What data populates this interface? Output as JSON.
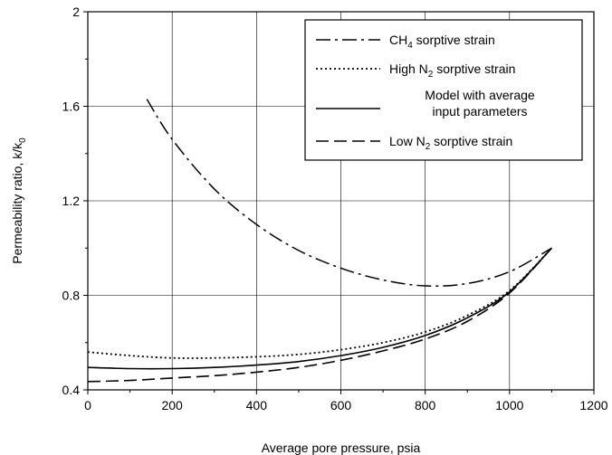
{
  "chart_data": {
    "type": "line",
    "xlabel": "Average pore pressure, psia",
    "ylabel": {
      "main": "Permeability ratio, k/k",
      "sub": "0"
    },
    "xlim": [
      0,
      1200
    ],
    "ylim": [
      0.4,
      2.0
    ],
    "xticks": [
      "0",
      "200",
      "400",
      "600",
      "800",
      "1000",
      "1200"
    ],
    "yticks": [
      "0.4",
      "0.8",
      "1.2",
      "1.6",
      "2"
    ],
    "grid": true,
    "legend_position": "top-right",
    "series": [
      {
        "name": "CH4 sorptive strain",
        "legend": {
          "pre": "CH",
          "sub": "4",
          "post": " sorptive strain"
        },
        "dash": "dashdot",
        "x": [
          140,
          200,
          300,
          400,
          500,
          600,
          700,
          800,
          900,
          1000,
          1100
        ],
        "y": [
          1.63,
          1.46,
          1.25,
          1.1,
          0.99,
          0.915,
          0.865,
          0.84,
          0.85,
          0.9,
          1.0
        ]
      },
      {
        "name": "High N2 sorptive strain",
        "legend": {
          "pre": "High N",
          "sub": "2",
          "post": " sorptive strain"
        },
        "dash": "dotted",
        "x": [
          0,
          100,
          200,
          300,
          400,
          500,
          600,
          700,
          800,
          900,
          1000,
          1100
        ],
        "y": [
          0.56,
          0.545,
          0.535,
          0.535,
          0.54,
          0.55,
          0.57,
          0.6,
          0.645,
          0.715,
          0.82,
          1.0
        ]
      },
      {
        "name": "Model with average input parameters",
        "legend": {
          "lines": [
            "Model with average",
            "input parameters"
          ]
        },
        "dash": "solid",
        "x": [
          0,
          100,
          200,
          300,
          400,
          500,
          600,
          700,
          800,
          900,
          1000,
          1100
        ],
        "y": [
          0.495,
          0.49,
          0.49,
          0.495,
          0.505,
          0.52,
          0.545,
          0.58,
          0.63,
          0.705,
          0.815,
          1.0
        ]
      },
      {
        "name": "Low N2 sorptive strain",
        "legend": {
          "pre": "Low N",
          "sub": "2",
          "post": " sorptive strain"
        },
        "dash": "dashed",
        "x": [
          0,
          100,
          200,
          300,
          400,
          500,
          600,
          700,
          800,
          900,
          1000,
          1100
        ],
        "y": [
          0.435,
          0.44,
          0.45,
          0.46,
          0.475,
          0.495,
          0.525,
          0.565,
          0.615,
          0.69,
          0.81,
          1.0
        ]
      }
    ]
  }
}
